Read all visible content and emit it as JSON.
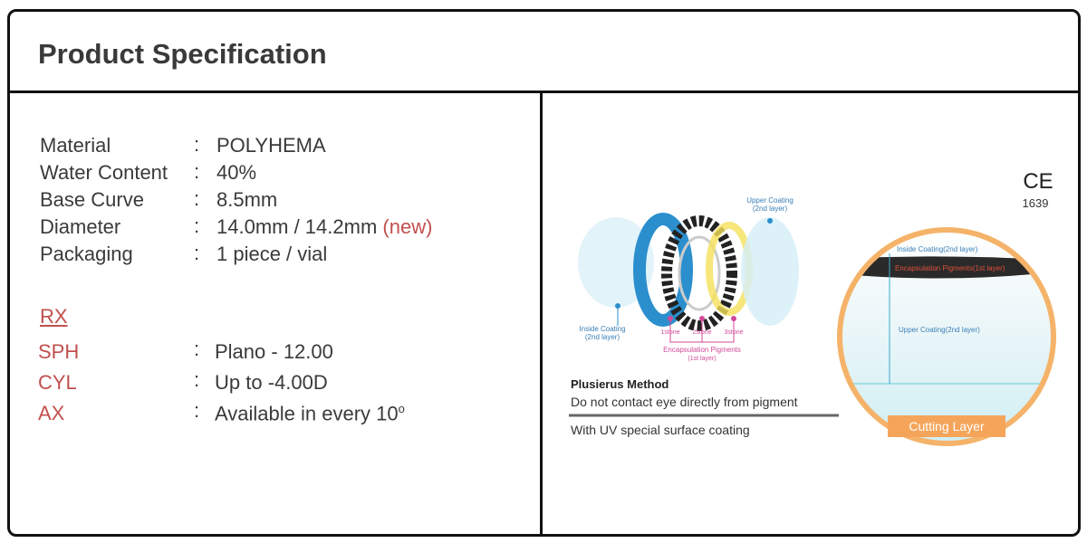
{
  "header": {
    "title": "Product Specification"
  },
  "separator": ":",
  "specs": [
    {
      "label": "Material",
      "value": "POLYHEMA"
    },
    {
      "label": "Water Content",
      "value": "40%"
    },
    {
      "label": "Base Curve",
      "value": "8.5mm"
    },
    {
      "label": "Diameter",
      "value": "14.0mm / 14.2mm",
      "note": "(new)"
    },
    {
      "label": "Packaging",
      "value": "1 piece / vial"
    }
  ],
  "rx": {
    "title": "RX",
    "rows": [
      {
        "label": "SPH",
        "value": "Plano - 12.00"
      },
      {
        "label": "CYL",
        "value": "Up to -4.00D"
      },
      {
        "label": "AX",
        "value": "Available in every 10",
        "sup": "o"
      }
    ]
  },
  "diagram": {
    "upper_coating": [
      "Upper Coating",
      "(2nd layer)"
    ],
    "inside_coating": [
      "Inside Coating",
      "(2nd layer)"
    ],
    "stones": [
      "1stone",
      "2stone",
      "3stone"
    ],
    "pigments": [
      "Encapsulation Pigments",
      "(1st layer)"
    ],
    "method_title": "Plusierus Method",
    "method_line1": "Do not contact eye directly from pigment",
    "method_line2": "With UV special surface coating",
    "certification": "CE",
    "certification_number": "1639",
    "section_labels": [
      "Inside Coating(2nd layer)",
      "Encapsulation Pigments(1st layer)",
      "Upper Coating(2nd layer)"
    ],
    "cutting_layer": "Cutting Layer"
  }
}
